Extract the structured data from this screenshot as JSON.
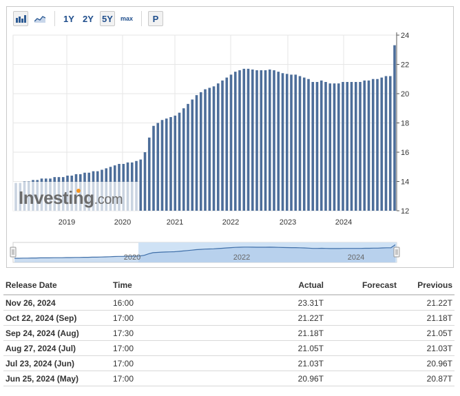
{
  "toolbar": {
    "bar_chart_icon": "bar-chart-icon",
    "area_chart_icon": "area-chart-icon",
    "ranges": [
      "1Y",
      "2Y",
      "5Y",
      "max"
    ],
    "active_range": "5Y",
    "print_label": "P"
  },
  "chart_data": {
    "type": "bar",
    "title": "",
    "xlabel": "",
    "ylabel": "",
    "ylim": [
      12,
      24
    ],
    "yticks": [
      12,
      14,
      16,
      18,
      20,
      22,
      24
    ],
    "x_tick_labels": [
      "2019",
      "2020",
      "2021",
      "2022",
      "2023",
      "2024"
    ],
    "grid": true,
    "axis_side": "right",
    "bar_color": "#4d6e9a",
    "series": [
      {
        "values": [
          13.9,
          13.9,
          14.0,
          14.0,
          14.1,
          14.1,
          14.2,
          14.2,
          14.2,
          14.3,
          14.3,
          14.3,
          14.4,
          14.4,
          14.5,
          14.5,
          14.6,
          14.6,
          14.7,
          14.7,
          14.8,
          14.9,
          15.0,
          15.1,
          15.2,
          15.2,
          15.3,
          15.3,
          15.4,
          15.5,
          16.0,
          17.0,
          17.8,
          18.0,
          18.2,
          18.3,
          18.4,
          18.5,
          18.7,
          19.0,
          19.3,
          19.6,
          19.9,
          20.1,
          20.3,
          20.4,
          20.5,
          20.7,
          20.9,
          21.1,
          21.3,
          21.5,
          21.6,
          21.7,
          21.7,
          21.65,
          21.6,
          21.6,
          21.6,
          21.65,
          21.6,
          21.5,
          21.4,
          21.35,
          21.3,
          21.3,
          21.2,
          21.1,
          21.0,
          20.8,
          20.8,
          20.9,
          20.8,
          20.7,
          20.7,
          20.7,
          20.8,
          20.8,
          20.8,
          20.8,
          20.8,
          20.9,
          20.9,
          21.0,
          21.0,
          21.1,
          21.2,
          21.2,
          23.31
        ]
      }
    ],
    "navigator": {
      "x_tick_labels": [
        "2020",
        "2022",
        "2024"
      ]
    }
  },
  "watermark": "Investing.com",
  "table": {
    "headers": [
      "Release Date",
      "Time",
      "Actual",
      "Forecast",
      "Previous"
    ],
    "rows": [
      {
        "date": "Nov 26, 2024",
        "time": "16:00",
        "actual": "23.31T",
        "forecast": "",
        "previous": "21.22T"
      },
      {
        "date": "Oct 22, 2024 (Sep)",
        "time": "17:00",
        "actual": "21.22T",
        "forecast": "",
        "previous": "21.18T"
      },
      {
        "date": "Sep 24, 2024 (Aug)",
        "time": "17:30",
        "actual": "21.18T",
        "forecast": "",
        "previous": "21.05T"
      },
      {
        "date": "Aug 27, 2024 (Jul)",
        "time": "17:00",
        "actual": "21.05T",
        "forecast": "",
        "previous": "21.03T"
      },
      {
        "date": "Jul 23, 2024 (Jun)",
        "time": "17:00",
        "actual": "21.03T",
        "forecast": "",
        "previous": "20.96T"
      },
      {
        "date": "Jun 25, 2024 (May)",
        "time": "17:00",
        "actual": "20.96T",
        "forecast": "",
        "previous": "20.87T"
      }
    ]
  }
}
